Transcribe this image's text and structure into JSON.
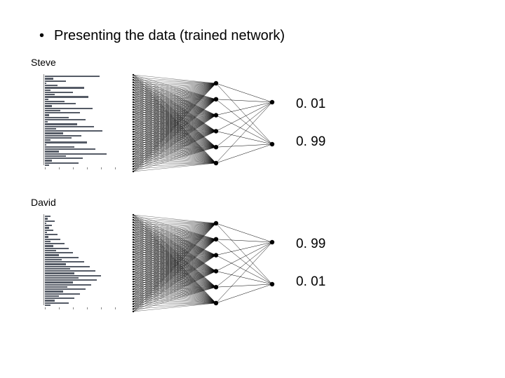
{
  "title": "Presenting the data (trained network)",
  "title_fontsize": 20,
  "background_color": "#ffffff",
  "text_color": "#000000",
  "sections": [
    {
      "name": "Steve",
      "histogram": {
        "bar_color": "#555b66",
        "axis_color": "#888888",
        "bars": [
          78,
          12,
          30,
          2,
          18,
          56,
          8,
          40,
          14,
          62,
          5,
          28,
          44,
          10,
          68,
          22,
          50,
          6,
          34,
          58,
          4,
          46,
          70,
          16,
          82,
          26,
          52,
          38,
          8,
          60,
          2,
          42,
          72,
          20,
          88,
          30,
          54,
          10,
          48,
          6
        ],
        "ticks": [
          0,
          20,
          40,
          60,
          80,
          100
        ]
      },
      "network": {
        "input_count": 40,
        "hidden_count": 6,
        "output_count": 2,
        "node_color": "#000000",
        "line_color": "#000000",
        "line_width": 0.3
      },
      "outputs": [
        "0. 01",
        "0. 99"
      ]
    },
    {
      "name": "David",
      "histogram": {
        "bar_color": "#555b66",
        "axis_color": "#888888",
        "bars": [
          8,
          4,
          14,
          2,
          10,
          6,
          12,
          3,
          18,
          5,
          22,
          8,
          28,
          12,
          34,
          16,
          40,
          20,
          48,
          24,
          56,
          30,
          64,
          36,
          72,
          42,
          80,
          48,
          74,
          40,
          66,
          32,
          58,
          26,
          50,
          20,
          42,
          14,
          34,
          8
        ],
        "ticks": [
          0,
          20,
          40,
          60,
          80,
          100
        ]
      },
      "network": {
        "input_count": 40,
        "hidden_count": 6,
        "output_count": 2,
        "node_color": "#000000",
        "line_color": "#000000",
        "line_width": 0.3
      },
      "outputs": [
        "0. 99",
        "0. 01"
      ]
    }
  ]
}
